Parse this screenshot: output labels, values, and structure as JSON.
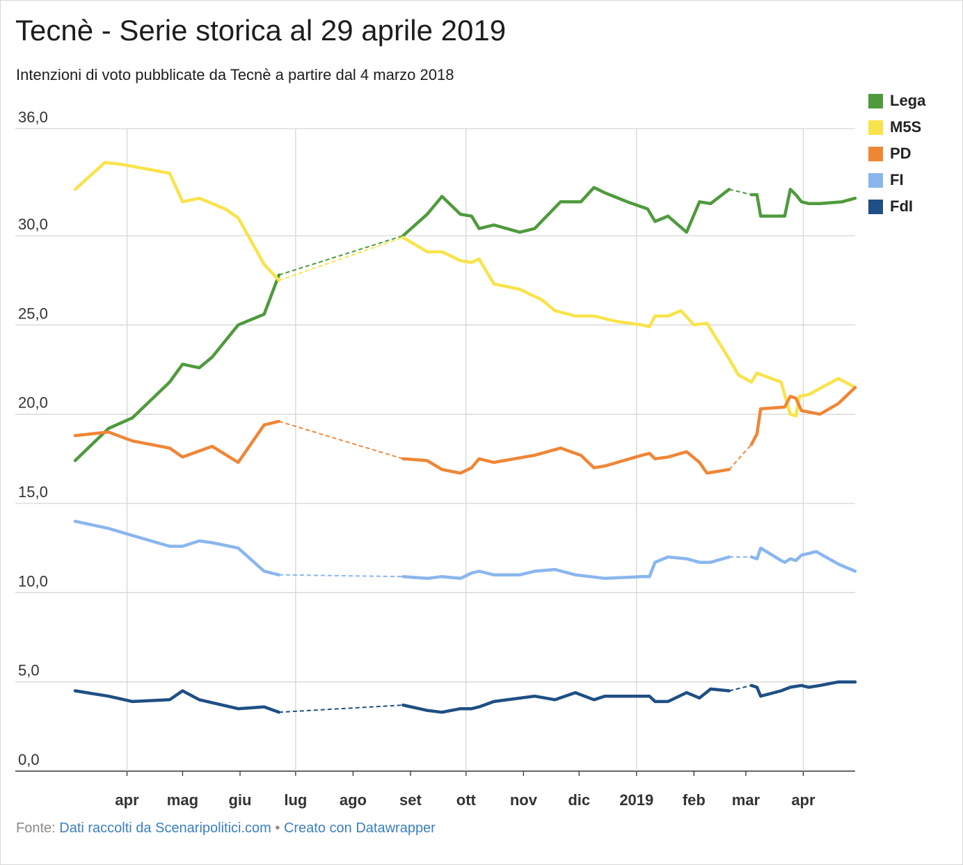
{
  "title": "Tecnè - Serie storica al 29 aprile 2019",
  "subtitle": "Intenzioni di voto pubblicate da Tecnè a partire dal 4 marzo 2018",
  "footer": {
    "prefix": "Fonte: ",
    "source": "Dati raccolti da Scenaripolitici.com",
    "separator": " • ",
    "credit": "Creato con Datawrapper"
  },
  "chart_data": {
    "type": "line",
    "title": "Tecnè - Serie storica al 29 aprile 2019",
    "xlabel": "",
    "ylabel": "",
    "ylim": [
      0,
      36
    ],
    "grid": true,
    "legend_position": "top-right",
    "y_ticks": [
      "0,0",
      "5,0",
      "10,0",
      "15,0",
      "20,0",
      "25,0",
      "30,0",
      "36,0"
    ],
    "y_tick_values": [
      0,
      5,
      10,
      15,
      20,
      25,
      30,
      36
    ],
    "x_range": [
      "2018-03-04",
      "2019-04-29"
    ],
    "x_ticks": [
      {
        "date": "2018-04-01",
        "label": "apr"
      },
      {
        "date": "2018-05-01",
        "label": "mag"
      },
      {
        "date": "2018-06-01",
        "label": "giu"
      },
      {
        "date": "2018-07-01",
        "label": "lug"
      },
      {
        "date": "2018-08-01",
        "label": "ago"
      },
      {
        "date": "2018-09-01",
        "label": "set"
      },
      {
        "date": "2018-10-01",
        "label": "ott"
      },
      {
        "date": "2018-11-01",
        "label": "nov"
      },
      {
        "date": "2018-12-01",
        "label": "dic"
      },
      {
        "date": "2019-01-01",
        "label": "2019"
      },
      {
        "date": "2019-02-01",
        "label": "feb"
      },
      {
        "date": "2019-03-01",
        "label": "mar"
      },
      {
        "date": "2019-04-01",
        "label": "apr"
      }
    ],
    "gridline_dates": [
      "2018-04-01",
      "2018-07-01",
      "2018-10-01",
      "2019-01-01",
      "2019-04-01"
    ],
    "series": [
      {
        "name": "Lega",
        "color": "#4f9a3d",
        "segments": [
          [
            [
              "2018-03-04",
              17.4
            ],
            [
              "2018-03-22",
              19.2
            ],
            [
              "2018-04-04",
              19.8
            ],
            [
              "2018-04-24",
              21.8
            ],
            [
              "2018-05-01",
              22.8
            ],
            [
              "2018-05-10",
              22.6
            ],
            [
              "2018-05-17",
              23.2
            ],
            [
              "2018-05-31",
              25.0
            ],
            [
              "2018-06-14",
              25.6
            ],
            [
              "2018-06-22",
              27.8
            ]
          ],
          [
            [
              "2018-08-28",
              30.0
            ],
            [
              "2018-09-10",
              31.2
            ],
            [
              "2018-09-18",
              32.2
            ],
            [
              "2018-09-28",
              31.2
            ],
            [
              "2018-10-04",
              31.1
            ],
            [
              "2018-10-08",
              30.4
            ],
            [
              "2018-10-16",
              30.6
            ],
            [
              "2018-10-30",
              30.2
            ],
            [
              "2018-11-07",
              30.4
            ],
            [
              "2018-11-21",
              31.9
            ],
            [
              "2018-12-02",
              31.9
            ],
            [
              "2018-12-09",
              32.7
            ],
            [
              "2018-12-15",
              32.4
            ],
            [
              "2018-12-27",
              31.9
            ],
            [
              "2019-01-07",
              31.5
            ],
            [
              "2019-01-11",
              30.8
            ],
            [
              "2019-01-18",
              31.1
            ],
            [
              "2019-01-28",
              30.2
            ],
            [
              "2019-02-04",
              31.9
            ],
            [
              "2019-02-10",
              31.8
            ],
            [
              "2019-02-20",
              32.6
            ]
          ],
          [
            [
              "2019-03-04",
              32.3
            ],
            [
              "2019-03-07",
              32.3
            ],
            [
              "2019-03-09",
              31.1
            ],
            [
              "2019-03-22",
              31.1
            ],
            [
              "2019-03-25",
              32.6
            ],
            [
              "2019-03-28",
              32.3
            ],
            [
              "2019-03-31",
              31.9
            ],
            [
              "2019-04-04",
              31.8
            ],
            [
              "2019-04-10",
              31.8
            ],
            [
              "2019-04-22",
              31.9
            ],
            [
              "2019-04-29",
              32.1
            ]
          ]
        ],
        "bridges": [
          [
            [
              "2018-06-22",
              27.8
            ],
            [
              "2018-08-28",
              30.0
            ]
          ],
          [
            [
              "2019-02-20",
              32.6
            ],
            [
              "2019-03-04",
              32.3
            ]
          ]
        ]
      },
      {
        "name": "M5S",
        "color": "#f9e34a",
        "segments": [
          [
            [
              "2018-03-04",
              32.6
            ],
            [
              "2018-03-20",
              34.1
            ],
            [
              "2018-03-29",
              34.0
            ],
            [
              "2018-04-24",
              33.5
            ],
            [
              "2018-05-01",
              31.9
            ],
            [
              "2018-05-10",
              32.1
            ],
            [
              "2018-05-24",
              31.5
            ],
            [
              "2018-05-31",
              31.0
            ],
            [
              "2018-06-14",
              28.4
            ],
            [
              "2018-06-22",
              27.5
            ]
          ],
          [
            [
              "2018-08-28",
              29.9
            ],
            [
              "2018-09-10",
              29.1
            ],
            [
              "2018-09-18",
              29.1
            ],
            [
              "2018-09-28",
              28.6
            ],
            [
              "2018-10-04",
              28.5
            ],
            [
              "2018-10-08",
              28.7
            ],
            [
              "2018-10-16",
              27.3
            ],
            [
              "2018-10-30",
              27.0
            ],
            [
              "2018-11-11",
              26.4
            ],
            [
              "2018-11-18",
              25.8
            ],
            [
              "2018-11-29",
              25.5
            ],
            [
              "2018-12-09",
              25.5
            ],
            [
              "2018-12-21",
              25.2
            ],
            [
              "2019-01-04",
              25.0
            ],
            [
              "2019-01-08",
              24.9
            ],
            [
              "2019-01-11",
              25.5
            ],
            [
              "2019-01-18",
              25.5
            ],
            [
              "2019-01-25",
              25.8
            ],
            [
              "2019-02-01",
              25.0
            ],
            [
              "2019-02-08",
              25.1
            ],
            [
              "2019-02-20",
              23.1
            ],
            [
              "2019-02-25",
              22.2
            ],
            [
              "2019-03-04",
              21.8
            ],
            [
              "2019-03-07",
              22.3
            ],
            [
              "2019-03-20",
              21.8
            ],
            [
              "2019-03-25",
              20.0
            ],
            [
              "2019-03-28",
              19.9
            ],
            [
              "2019-03-30",
              21.0
            ],
            [
              "2019-04-04",
              21.1
            ],
            [
              "2019-04-20",
              22.0
            ],
            [
              "2019-04-29",
              21.5
            ]
          ]
        ],
        "bridges": [
          [
            [
              "2018-06-22",
              27.5
            ],
            [
              "2018-08-28",
              29.9
            ]
          ]
        ]
      },
      {
        "name": "PD",
        "color": "#ef8636",
        "segments": [
          [
            [
              "2018-03-04",
              18.8
            ],
            [
              "2018-03-22",
              19.0
            ],
            [
              "2018-04-04",
              18.5
            ],
            [
              "2018-04-24",
              18.1
            ],
            [
              "2018-05-01",
              17.6
            ],
            [
              "2018-05-17",
              18.2
            ],
            [
              "2018-05-31",
              17.3
            ],
            [
              "2018-06-14",
              19.4
            ],
            [
              "2018-06-22",
              19.6
            ]
          ],
          [
            [
              "2018-08-28",
              17.5
            ],
            [
              "2018-09-10",
              17.4
            ],
            [
              "2018-09-18",
              16.9
            ],
            [
              "2018-09-28",
              16.7
            ],
            [
              "2018-10-04",
              17.0
            ],
            [
              "2018-10-08",
              17.5
            ],
            [
              "2018-10-16",
              17.3
            ],
            [
              "2018-11-07",
              17.7
            ],
            [
              "2018-11-21",
              18.1
            ],
            [
              "2018-12-02",
              17.7
            ],
            [
              "2018-12-09",
              17.0
            ],
            [
              "2018-12-15",
              17.1
            ],
            [
              "2019-01-04",
              17.7
            ],
            [
              "2019-01-08",
              17.8
            ],
            [
              "2019-01-11",
              17.5
            ],
            [
              "2019-01-18",
              17.6
            ],
            [
              "2019-01-28",
              17.9
            ],
            [
              "2019-02-04",
              17.3
            ],
            [
              "2019-02-08",
              16.7
            ],
            [
              "2019-02-20",
              16.9
            ]
          ],
          [
            [
              "2019-03-04",
              18.3
            ],
            [
              "2019-03-07",
              18.9
            ],
            [
              "2019-03-09",
              20.3
            ],
            [
              "2019-03-22",
              20.4
            ],
            [
              "2019-03-25",
              21.0
            ],
            [
              "2019-03-28",
              20.9
            ],
            [
              "2019-03-31",
              20.2
            ],
            [
              "2019-04-10",
              20.0
            ],
            [
              "2019-04-20",
              20.6
            ],
            [
              "2019-04-29",
              21.5
            ]
          ]
        ],
        "bridges": [
          [
            [
              "2018-06-22",
              19.6
            ],
            [
              "2018-08-28",
              17.5
            ]
          ],
          [
            [
              "2019-02-20",
              16.9
            ],
            [
              "2019-03-04",
              18.3
            ]
          ]
        ]
      },
      {
        "name": "FI",
        "color": "#8ab6ee",
        "segments": [
          [
            [
              "2018-03-04",
              14.0
            ],
            [
              "2018-03-22",
              13.6
            ],
            [
              "2018-04-04",
              13.2
            ],
            [
              "2018-04-24",
              12.6
            ],
            [
              "2018-05-01",
              12.6
            ],
            [
              "2018-05-10",
              12.9
            ],
            [
              "2018-05-17",
              12.8
            ],
            [
              "2018-05-31",
              12.5
            ],
            [
              "2018-06-14",
              11.2
            ],
            [
              "2018-06-22",
              11.0
            ]
          ],
          [
            [
              "2018-08-28",
              10.9
            ],
            [
              "2018-09-10",
              10.8
            ],
            [
              "2018-09-18",
              10.9
            ],
            [
              "2018-09-28",
              10.8
            ],
            [
              "2018-10-04",
              11.1
            ],
            [
              "2018-10-08",
              11.2
            ],
            [
              "2018-10-16",
              11.0
            ],
            [
              "2018-10-30",
              11.0
            ],
            [
              "2018-11-07",
              11.2
            ],
            [
              "2018-11-18",
              11.3
            ],
            [
              "2018-11-29",
              11.0
            ],
            [
              "2018-12-15",
              10.8
            ],
            [
              "2019-01-04",
              10.9
            ],
            [
              "2019-01-08",
              10.9
            ],
            [
              "2019-01-11",
              11.7
            ],
            [
              "2019-01-18",
              12.0
            ],
            [
              "2019-01-28",
              11.9
            ],
            [
              "2019-02-04",
              11.7
            ],
            [
              "2019-02-10",
              11.7
            ],
            [
              "2019-02-20",
              12.0
            ]
          ],
          [
            [
              "2019-03-04",
              12.0
            ],
            [
              "2019-03-07",
              11.9
            ],
            [
              "2019-03-09",
              12.5
            ],
            [
              "2019-03-20",
              11.8
            ],
            [
              "2019-03-22",
              11.7
            ],
            [
              "2019-03-25",
              11.9
            ],
            [
              "2019-03-28",
              11.8
            ],
            [
              "2019-03-31",
              12.1
            ],
            [
              "2019-04-08",
              12.3
            ],
            [
              "2019-04-20",
              11.6
            ],
            [
              "2019-04-29",
              11.2
            ]
          ]
        ],
        "bridges": [
          [
            [
              "2018-06-22",
              11.0
            ],
            [
              "2018-08-28",
              10.9
            ]
          ],
          [
            [
              "2019-02-20",
              12.0
            ],
            [
              "2019-03-04",
              12.0
            ]
          ]
        ]
      },
      {
        "name": "FdI",
        "color": "#1f4f84",
        "segments": [
          [
            [
              "2018-03-04",
              4.5
            ],
            [
              "2018-03-22",
              4.2
            ],
            [
              "2018-04-04",
              3.9
            ],
            [
              "2018-04-24",
              4.0
            ],
            [
              "2018-05-01",
              4.5
            ],
            [
              "2018-05-10",
              4.0
            ],
            [
              "2018-05-31",
              3.5
            ],
            [
              "2018-06-14",
              3.6
            ],
            [
              "2018-06-22",
              3.3
            ]
          ],
          [
            [
              "2018-08-28",
              3.7
            ],
            [
              "2018-09-10",
              3.4
            ],
            [
              "2018-09-18",
              3.3
            ],
            [
              "2018-09-28",
              3.5
            ],
            [
              "2018-10-04",
              3.5
            ],
            [
              "2018-10-08",
              3.6
            ],
            [
              "2018-10-16",
              3.9
            ],
            [
              "2018-11-07",
              4.2
            ],
            [
              "2018-11-18",
              4.0
            ],
            [
              "2018-11-29",
              4.4
            ],
            [
              "2018-12-09",
              4.0
            ],
            [
              "2018-12-15",
              4.2
            ],
            [
              "2019-01-08",
              4.2
            ],
            [
              "2019-01-11",
              3.9
            ],
            [
              "2019-01-18",
              3.9
            ],
            [
              "2019-01-28",
              4.4
            ],
            [
              "2019-02-04",
              4.1
            ],
            [
              "2019-02-10",
              4.6
            ],
            [
              "2019-02-20",
              4.5
            ]
          ],
          [
            [
              "2019-03-04",
              4.8
            ],
            [
              "2019-03-07",
              4.7
            ],
            [
              "2019-03-09",
              4.2
            ],
            [
              "2019-03-20",
              4.5
            ],
            [
              "2019-03-25",
              4.7
            ],
            [
              "2019-03-31",
              4.8
            ],
            [
              "2019-04-04",
              4.7
            ],
            [
              "2019-04-10",
              4.8
            ],
            [
              "2019-04-20",
              5.0
            ],
            [
              "2019-04-29",
              5.0
            ]
          ]
        ],
        "bridges": [
          [
            [
              "2018-06-22",
              3.3
            ],
            [
              "2018-08-28",
              3.7
            ]
          ],
          [
            [
              "2019-02-20",
              4.5
            ],
            [
              "2019-03-04",
              4.8
            ]
          ]
        ]
      }
    ]
  }
}
